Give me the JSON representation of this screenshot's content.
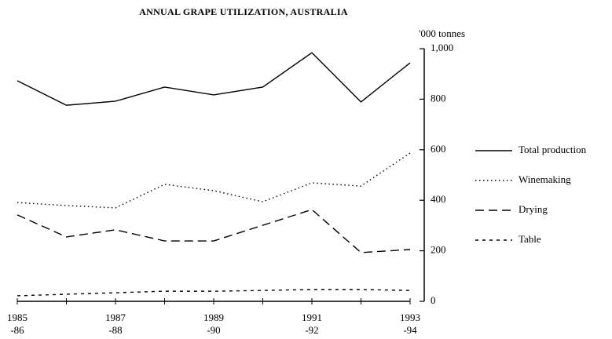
{
  "chart_data": {
    "type": "line",
    "title": "ANNUAL GRAPE UTILIZATION, AUSTRALIA",
    "y_axis_label": "'000 tonnes",
    "categories": [
      [
        "1985",
        "-86"
      ],
      null,
      [
        "1987",
        "-88"
      ],
      null,
      [
        "1989",
        "-90"
      ],
      null,
      [
        "1991",
        "-92"
      ],
      null,
      [
        "1993",
        "-94"
      ]
    ],
    "series": [
      {
        "name": "Total production",
        "color": "#000000",
        "dash": "none",
        "values": [
          873,
          776,
          792,
          848,
          817,
          848,
          984,
          789,
          944
        ]
      },
      {
        "name": "Winemaking",
        "color": "#000000",
        "dash": "1.5 3.5",
        "values": [
          391,
          379,
          370,
          463,
          438,
          394,
          469,
          456,
          587
        ]
      },
      {
        "name": "Drying",
        "color": "#000000",
        "dash": "11 6",
        "values": [
          342,
          255,
          283,
          239,
          239,
          301,
          363,
          193,
          205
        ]
      },
      {
        "name": "Table",
        "color": "#000000",
        "dash": "4 5",
        "values": [
          22,
          28,
          34,
          40,
          40,
          43,
          47,
          47,
          43
        ]
      }
    ],
    "ylim": [
      0,
      1000
    ],
    "yticks": [
      0,
      200,
      400,
      600,
      800,
      {
        "value": 1000,
        "label": "1,000"
      }
    ],
    "legend": "right"
  }
}
